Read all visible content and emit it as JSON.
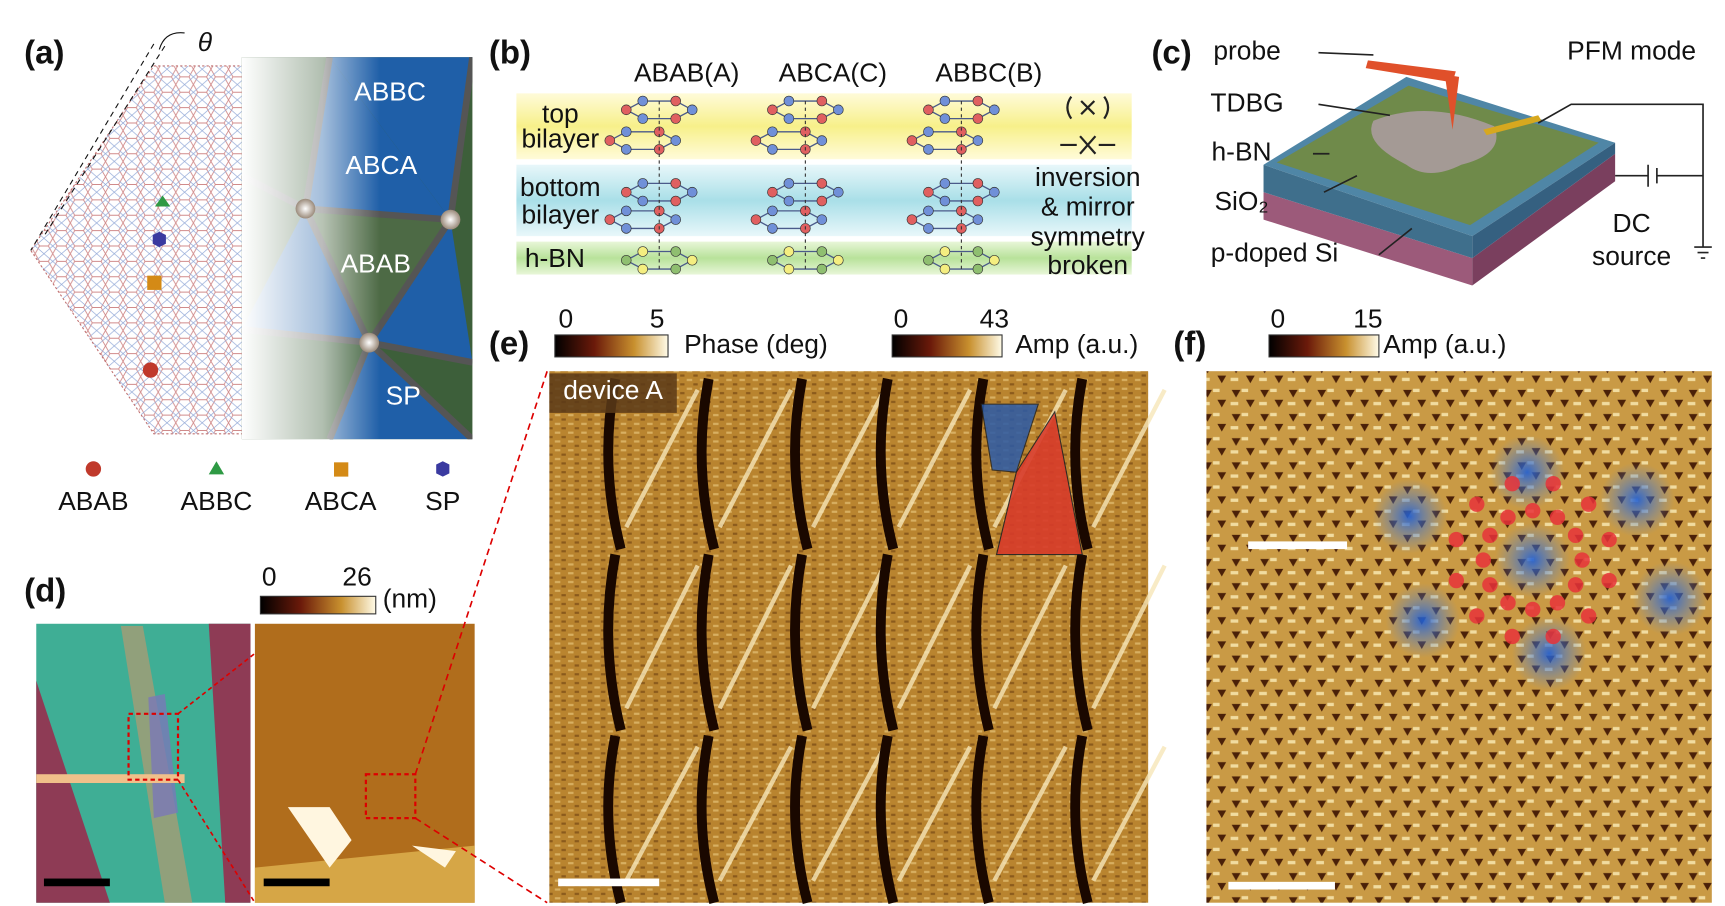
{
  "panel_a": {
    "label": "(a)",
    "theta": "θ",
    "regions": [
      "ABBC",
      "ABCA",
      "ABAB",
      "SP"
    ],
    "legend": [
      "ABAB",
      "ABBC",
      "ABCA",
      "SP"
    ]
  },
  "panel_b": {
    "label": "(b)",
    "columns": [
      "ABAB(A)",
      "ABCA(C)",
      "ABBC(B)"
    ],
    "top": [
      "top",
      "bilayer"
    ],
    "bottom": [
      "bottom",
      "bilayer"
    ],
    "hbn": "h-BN",
    "note": [
      "inversion",
      "& mirror",
      "symmetry",
      "broken"
    ]
  },
  "panel_c": {
    "label": "(c)",
    "probe": "probe",
    "mode": "PFM mode",
    "tdbg": "TDBG",
    "hbn": "h-BN",
    "sio2": "SiO₂",
    "si": "p-doped Si",
    "source": [
      "DC",
      "source"
    ]
  },
  "panel_d": {
    "label": "(d)",
    "colorbar": {
      "min": "0",
      "max": "26",
      "unit": "(nm)"
    }
  },
  "panel_e": {
    "label": "(e)",
    "phase_bar": {
      "min": "0",
      "max": "5",
      "unit": "Phase (deg)"
    },
    "amp_bar": {
      "min": "0",
      "max": "43",
      "unit": "Amp (a.u.)"
    },
    "device": "device A"
  },
  "panel_f": {
    "label": "(f)",
    "colorbar": {
      "min": "0",
      "max": "15",
      "unit": "Amp (a.u.)"
    }
  }
}
